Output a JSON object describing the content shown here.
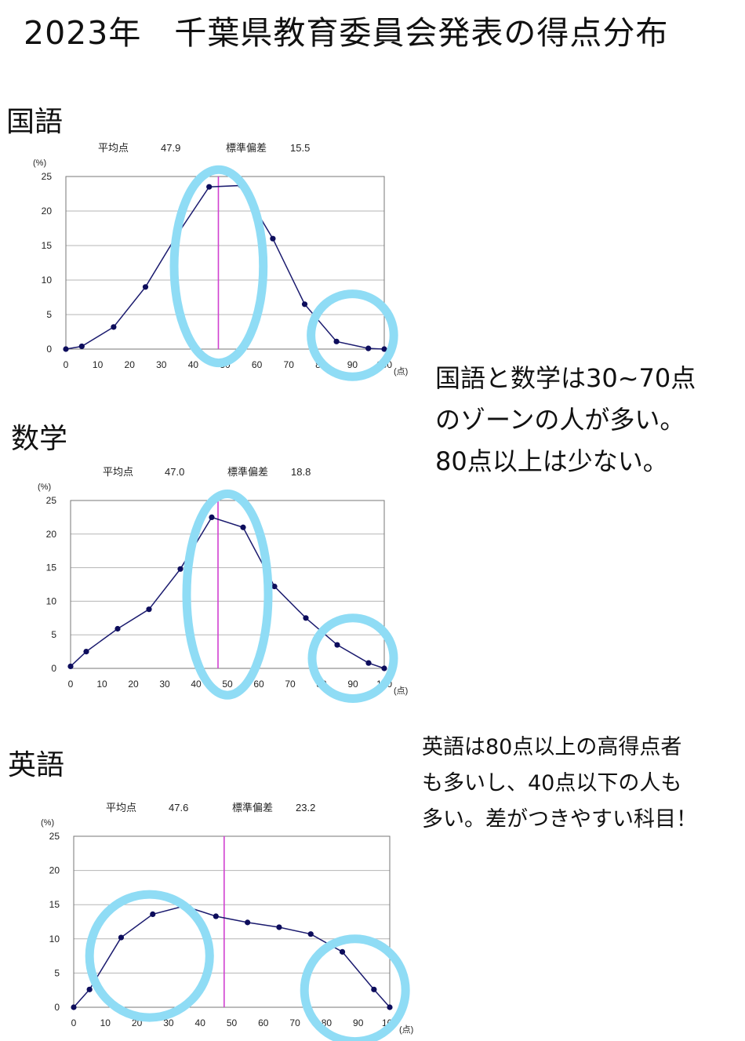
{
  "page": {
    "title": "2023年　千葉県教育委員会発表の得点分布"
  },
  "colors": {
    "line": "#1a1a6e",
    "marker": "#0d0d5c",
    "mean_line": "#d040d0",
    "highlight": "#8fdcf5",
    "grid": "#b5b5b5",
    "axis": "#777777"
  },
  "chart_data": [
    {
      "type": "line",
      "subject": "国語",
      "mean_label": "平均点",
      "mean_value": "47.9",
      "sd_label": "標準偏差",
      "sd_value": "15.5",
      "mean": 47.9,
      "ylabel": "(%)",
      "xlabel": "(点)",
      "xlim": [
        0,
        100
      ],
      "ylim": [
        0,
        25
      ],
      "xticks": [
        0,
        10,
        20,
        30,
        40,
        50,
        60,
        70,
        80,
        90,
        100
      ],
      "yticks": [
        0,
        5,
        10,
        15,
        20,
        25
      ],
      "grid": true,
      "x": [
        0,
        5,
        15,
        25,
        35,
        45,
        55,
        65,
        75,
        85,
        95,
        100
      ],
      "values": [
        0,
        0.4,
        3.2,
        9.0,
        16.6,
        23.5,
        23.7,
        16.0,
        6.5,
        1.1,
        0.1,
        0
      ],
      "highlights": [
        {
          "cx": 48,
          "cy": 12,
          "rx": 14,
          "ry": 14
        },
        {
          "cx": 90,
          "cy": 2,
          "rx": 13,
          "ry": 6
        }
      ]
    },
    {
      "type": "line",
      "subject": "数学",
      "mean_label": "平均点",
      "mean_value": "47.0",
      "sd_label": "標準偏差",
      "sd_value": "18.8",
      "mean": 47.0,
      "ylabel": "(%)",
      "xlabel": "(点)",
      "xlim": [
        0,
        100
      ],
      "ylim": [
        0,
        25
      ],
      "xticks": [
        0,
        10,
        20,
        30,
        40,
        50,
        60,
        70,
        80,
        90,
        100
      ],
      "yticks": [
        0,
        5,
        10,
        15,
        20,
        25
      ],
      "grid": true,
      "x": [
        0,
        5,
        15,
        25,
        35,
        45,
        55,
        65,
        75,
        85,
        95,
        100
      ],
      "values": [
        0.3,
        2.5,
        5.9,
        8.8,
        14.8,
        22.5,
        21.0,
        12.2,
        7.5,
        3.5,
        0.8,
        0
      ],
      "highlights": [
        {
          "cx": 50,
          "cy": 11,
          "rx": 13,
          "ry": 15
        },
        {
          "cx": 90,
          "cy": 1.5,
          "rx": 13,
          "ry": 6
        }
      ]
    },
    {
      "type": "line",
      "subject": "英語",
      "mean_label": "平均点",
      "mean_value": "47.6",
      "sd_label": "標準偏差",
      "sd_value": "23.2",
      "mean": 47.6,
      "ylabel": "(%)",
      "xlabel": "(点)",
      "xlim": [
        0,
        100
      ],
      "ylim": [
        0,
        25
      ],
      "xticks": [
        0,
        10,
        20,
        30,
        40,
        50,
        60,
        70,
        80,
        90,
        100
      ],
      "yticks": [
        0,
        5,
        10,
        15,
        20,
        25
      ],
      "grid": true,
      "x": [
        0,
        5,
        15,
        25,
        35,
        45,
        55,
        65,
        75,
        85,
        95,
        100
      ],
      "values": [
        0,
        2.6,
        10.2,
        13.6,
        14.8,
        13.3,
        12.4,
        11.7,
        10.7,
        8.1,
        2.6,
        0
      ],
      "highlights": [
        {
          "cx": 24,
          "cy": 7.5,
          "rx": 19,
          "ry": 9
        },
        {
          "cx": 89,
          "cy": 2.5,
          "rx": 16,
          "ry": 7.5
        }
      ]
    }
  ],
  "notes": {
    "kokugo_math": [
      "国語と数学は30~70点",
      "のゾーンの人が多い。",
      "80点以上は少ない。"
    ],
    "english": [
      "英語は80点以上の高得点者",
      "も多いし、40点以下の人も",
      "多い。差がつきやすい科目！"
    ]
  }
}
